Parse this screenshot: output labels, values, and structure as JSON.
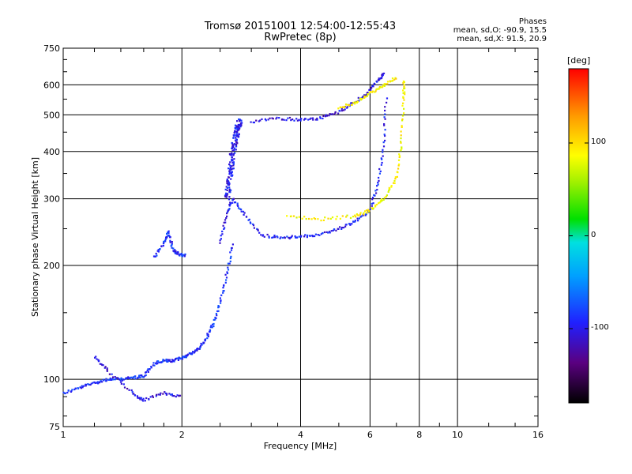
{
  "title": {
    "line1": "Tromsø 20151001 12:54:00-12:55:43",
    "line2": "RwPretec (8p)"
  },
  "phases_stats": {
    "header": "Phases",
    "o_line": "mean, sd,O: -90.9, 15.5",
    "x_line": "mean, sd,X: 91.5, 20.9"
  },
  "colorbar": {
    "unit": "[deg]",
    "ticks": [
      "100",
      "0",
      "-100"
    ],
    "range": [
      -180,
      180
    ],
    "scale": "rainbow: black-purple-blue-cyan-green-yellow-orange-red"
  },
  "chart_data": {
    "type": "scatter",
    "xlabel": "Frequency [MHz]",
    "ylabel": "Stationary phase Virtual Height [km]",
    "xscale": "log",
    "yscale": "log",
    "xlim": [
      1,
      16
    ],
    "ylim": [
      75,
      750
    ],
    "xticks": [
      "1",
      "2",
      "4",
      "6",
      "8",
      "10",
      "16"
    ],
    "yticks": [
      "750",
      "600",
      "500",
      "400",
      "300",
      "200",
      "100",
      "75"
    ],
    "grid": true,
    "colors": {
      "o_mode": "#1f3fff",
      "x_mode": "#f0e020",
      "grid": "#000000"
    },
    "traces": [
      {
        "mode": "O-E",
        "phase": -95,
        "points": [
          [
            1.0,
            92
          ],
          [
            1.1,
            95
          ],
          [
            1.2,
            98
          ],
          [
            1.3,
            100
          ],
          [
            1.4,
            100
          ],
          [
            1.5,
            101
          ],
          [
            1.6,
            102
          ],
          [
            1.7,
            110
          ],
          [
            1.8,
            112
          ],
          [
            1.9,
            112
          ],
          [
            2.0,
            114
          ],
          [
            2.1,
            117
          ],
          [
            2.2,
            120
          ],
          [
            2.3,
            128
          ],
          [
            2.4,
            140
          ],
          [
            2.5,
            160
          ],
          [
            2.6,
            190
          ],
          [
            2.7,
            230
          ]
        ]
      },
      {
        "mode": "O-F",
        "phase": -100,
        "points": [
          [
            2.5,
            230
          ],
          [
            2.6,
            275
          ],
          [
            2.7,
            300
          ],
          [
            2.9,
            270
          ],
          [
            3.2,
            240
          ],
          [
            3.6,
            237
          ],
          [
            4.0,
            238
          ],
          [
            4.5,
            242
          ],
          [
            5.0,
            250
          ],
          [
            5.5,
            262
          ],
          [
            6.0,
            280
          ],
          [
            6.3,
            330
          ],
          [
            6.5,
            420
          ],
          [
            6.6,
            560
          ]
        ]
      },
      {
        "mode": "O-cusp",
        "phase": -105,
        "points": [
          [
            2.6,
            300
          ],
          [
            2.65,
            350
          ],
          [
            2.7,
            400
          ],
          [
            2.75,
            450
          ],
          [
            2.8,
            480
          ]
        ]
      },
      {
        "mode": "O-F2-multi",
        "phase": -110,
        "points": [
          [
            3.0,
            480
          ],
          [
            3.5,
            490
          ],
          [
            4.0,
            485
          ],
          [
            4.5,
            490
          ],
          [
            5.0,
            510
          ],
          [
            5.5,
            540
          ],
          [
            6.0,
            580
          ],
          [
            6.3,
            620
          ],
          [
            6.5,
            640
          ]
        ]
      },
      {
        "mode": "X-F",
        "phase": 95,
        "points": [
          [
            3.7,
            270
          ],
          [
            4.5,
            265
          ],
          [
            5.5,
            270
          ],
          [
            6.0,
            280
          ],
          [
            6.5,
            300
          ],
          [
            7.0,
            340
          ],
          [
            7.2,
            420
          ],
          [
            7.3,
            550
          ],
          [
            7.3,
            620
          ]
        ]
      },
      {
        "mode": "X-F2-multi",
        "phase": 100,
        "points": [
          [
            5.0,
            520
          ],
          [
            5.5,
            540
          ],
          [
            6.0,
            570
          ],
          [
            6.5,
            600
          ],
          [
            7.0,
            630
          ]
        ]
      },
      {
        "mode": "E-patch",
        "phase": -95,
        "points": [
          [
            1.7,
            210
          ],
          [
            1.8,
            230
          ],
          [
            1.85,
            245
          ],
          [
            1.9,
            220
          ],
          [
            1.95,
            215
          ],
          [
            2.05,
            212
          ]
        ]
      },
      {
        "mode": "low-scatter",
        "phase": -110,
        "points": [
          [
            1.2,
            115
          ],
          [
            1.3,
            105
          ],
          [
            1.5,
            92
          ],
          [
            1.6,
            88
          ],
          [
            1.8,
            92
          ],
          [
            2.0,
            90
          ]
        ]
      }
    ]
  }
}
